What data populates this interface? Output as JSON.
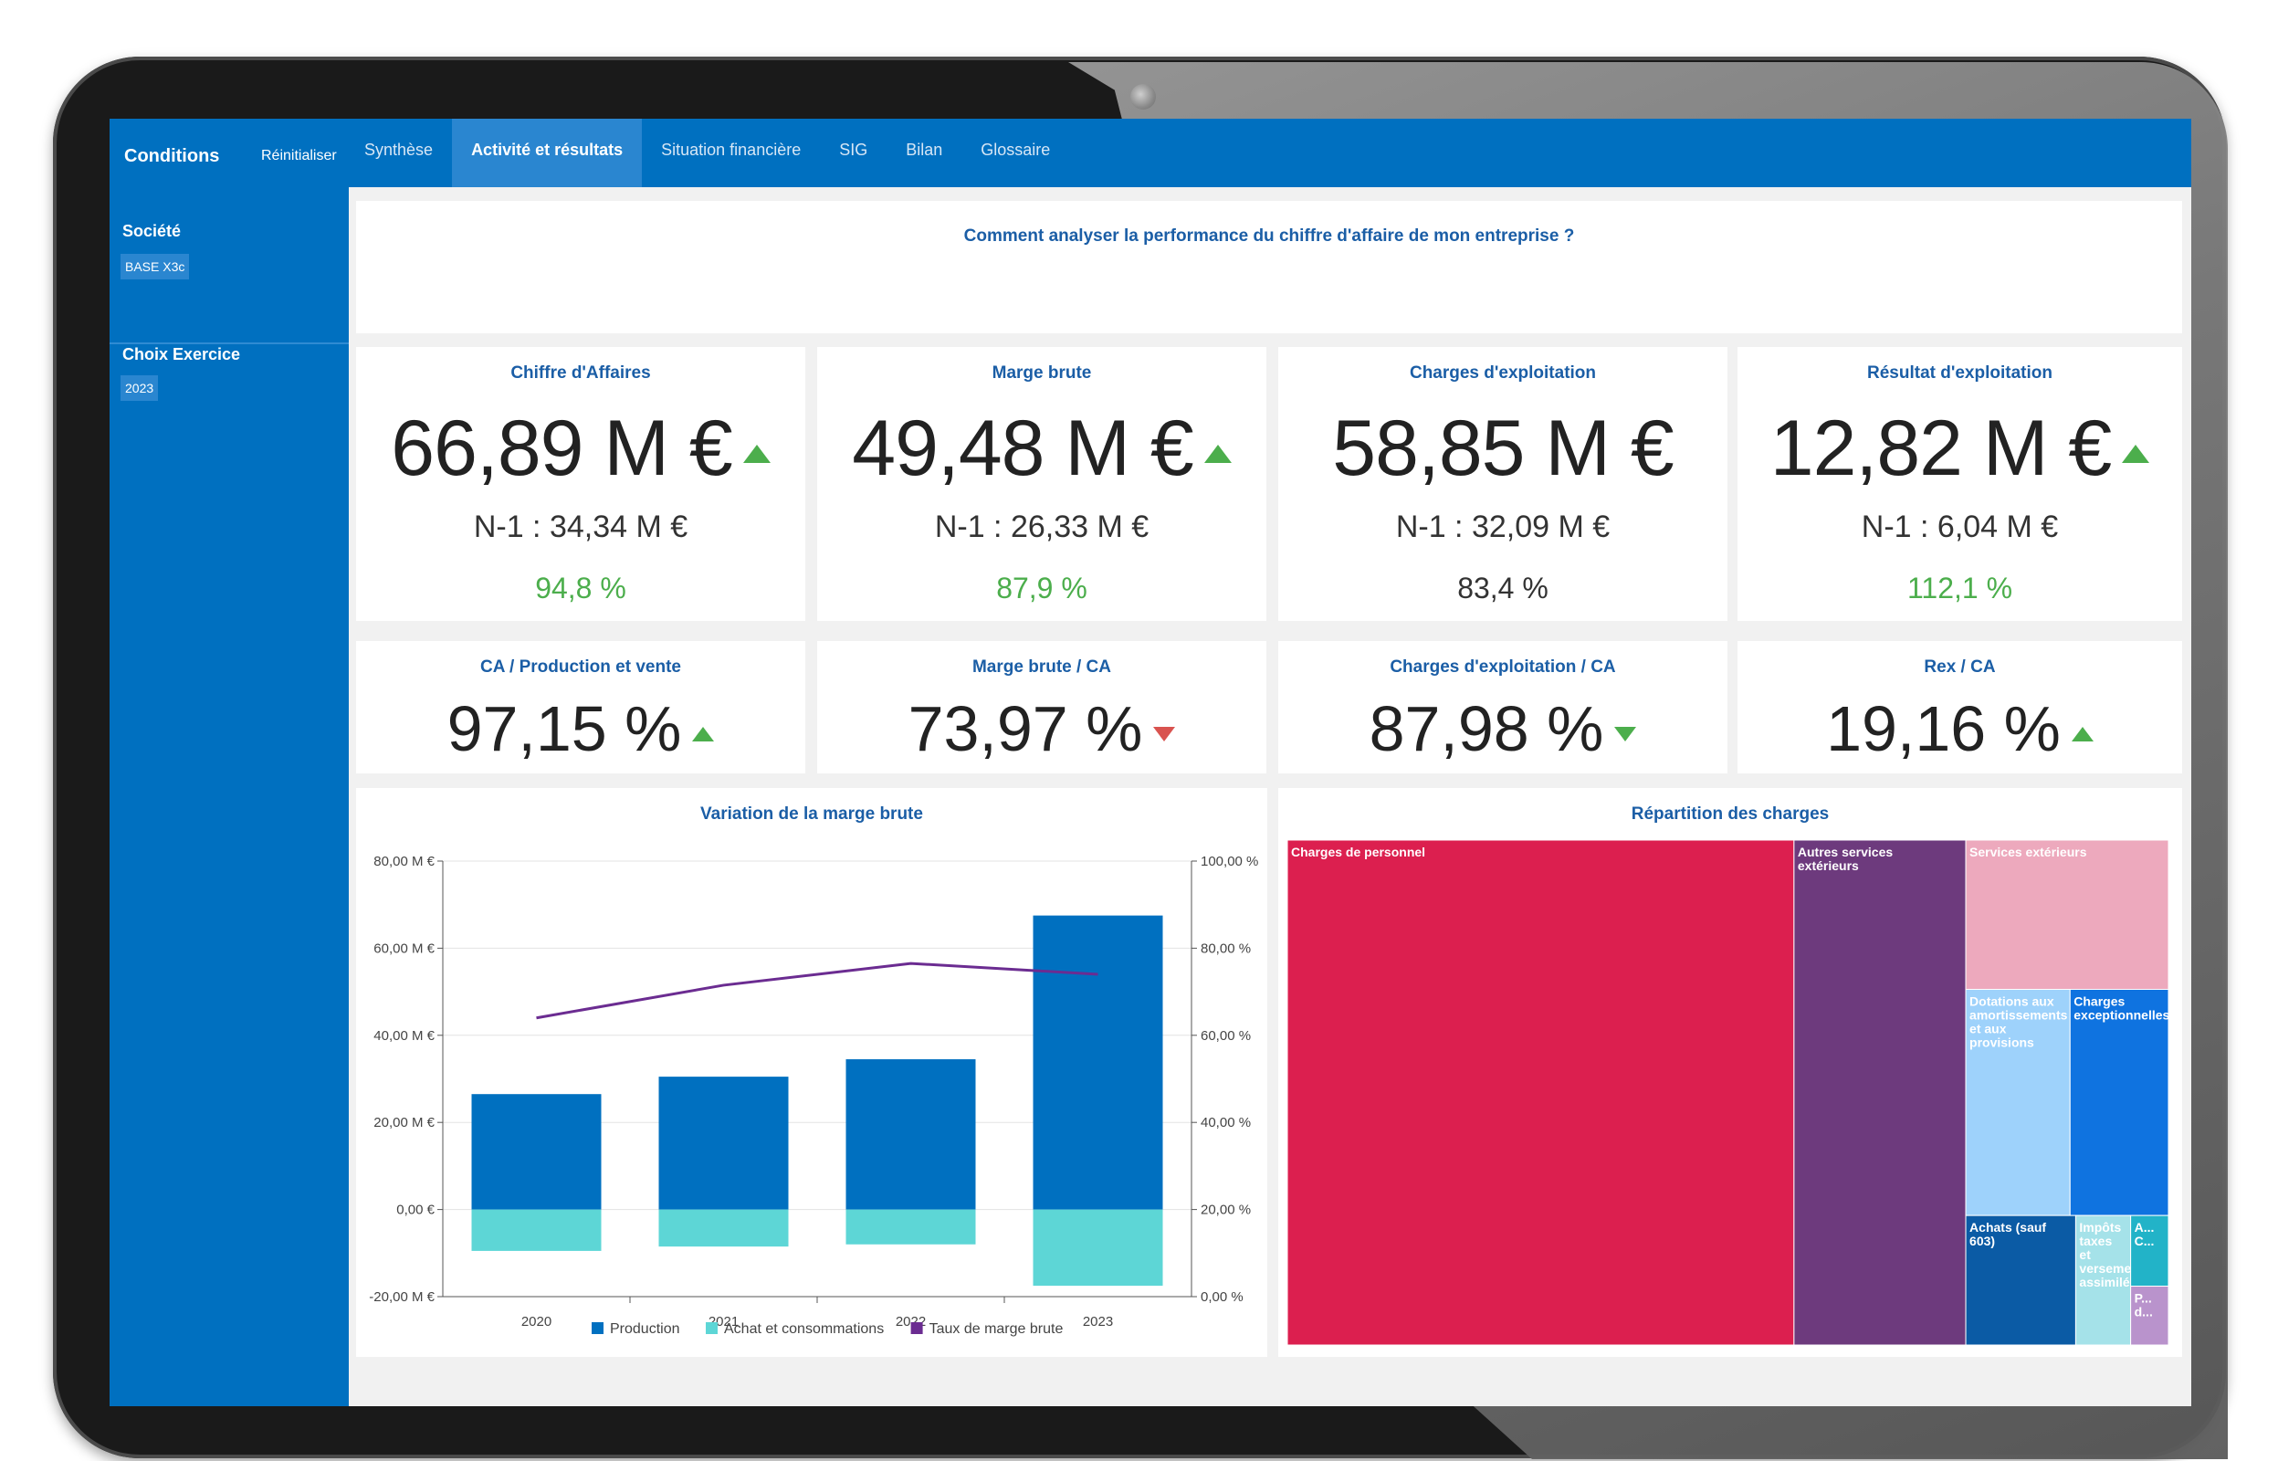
{
  "topbar": {
    "conditions_label": "Conditions",
    "reset_label": "Réinitialiser",
    "tabs": [
      {
        "label": "Synthèse",
        "active": false
      },
      {
        "label": "Activité et résultats",
        "active": true
      },
      {
        "label": "Situation financière",
        "active": false
      },
      {
        "label": "SIG",
        "active": false
      },
      {
        "label": "Bilan",
        "active": false
      },
      {
        "label": "Glossaire",
        "active": false
      }
    ]
  },
  "sidebar": {
    "societe_label": "Société",
    "societe_value": "BASE X3c",
    "exercice_label": "Choix Exercice",
    "exercice_value": "2023"
  },
  "question": "Comment analyser la performance du chiffre d'affaire de mon entreprise ?",
  "kpis": [
    {
      "title": "Chiffre d'Affaires",
      "value": "66,89 M €",
      "trend": "up",
      "previous": "N-1 : 34,34 M €",
      "change": "94,8 %",
      "change_color": "green"
    },
    {
      "title": "Marge brute",
      "value": "49,48 M €",
      "trend": "up",
      "previous": "N-1 : 26,33 M €",
      "change": "87,9 %",
      "change_color": "green"
    },
    {
      "title": "Charges d'exploitation",
      "value": "58,85 M €",
      "trend": "none",
      "previous": "N-1 : 32,09 M €",
      "change": "83,4 %",
      "change_color": "black"
    },
    {
      "title": "Résultat d'exploitation",
      "value": "12,82 M €",
      "trend": "up",
      "previous": "N-1 : 6,04 M €",
      "change": "112,1 %",
      "change_color": "green"
    }
  ],
  "ratios": [
    {
      "title": "CA / Production et vente",
      "value": "97,15 %",
      "trend": "up",
      "color": "green"
    },
    {
      "title": "Marge brute / CA",
      "value": "73,97 %",
      "trend": "down",
      "color": "red"
    },
    {
      "title": "Charges d'exploitation / CA",
      "value": "87,98 %",
      "trend": "down",
      "color": "green"
    },
    {
      "title": "Rex / CA",
      "value": "19,16 %",
      "trend": "up",
      "color": "green"
    }
  ],
  "colors": {
    "brand": "#0070c0",
    "production": "#0070c0",
    "achats": "#5dd6d6",
    "taux": "#6b2c91",
    "trend_up": "#4cae4c",
    "trend_down_bad": "#d9534f"
  },
  "chart_data": [
    {
      "type": "bar",
      "title": "Variation de la marge brute",
      "categories": [
        "2020",
        "2021",
        "2022",
        "2023"
      ],
      "series": [
        {
          "name": "Production",
          "kind": "bar",
          "values": [
            26.5,
            30.5,
            34.5,
            67.5
          ],
          "color": "#0070c0"
        },
        {
          "name": "Achat et consommations",
          "kind": "bar",
          "values": [
            -9.5,
            -8.5,
            -8.0,
            -17.5
          ],
          "color": "#5dd6d6"
        },
        {
          "name": "Taux de marge brute",
          "kind": "line",
          "axis": "right",
          "values": [
            64.0,
            71.5,
            76.5,
            74.0
          ],
          "color": "#6b2c91"
        }
      ],
      "y_ticks": [
        "80,00 M €",
        "60,00 M €",
        "40,00 M €",
        "20,00 M €",
        "0,00 €",
        "-20,00 M €"
      ],
      "y2_ticks": [
        "100,00 %",
        "80,00 %",
        "60,00 %",
        "40,00 %",
        "20,00 %",
        "0,00 %"
      ],
      "ylim": [
        -20,
        80
      ],
      "y2lim": [
        0,
        100
      ],
      "legend": "bottom"
    },
    {
      "type": "treemap",
      "title": "Répartition des charges",
      "items": [
        {
          "label": "Charges de personnel",
          "share": 57.5,
          "color": "#dc1f4f"
        },
        {
          "label": "Autres services extérieurs",
          "share": 19.5,
          "color": "#6d3a7d"
        },
        {
          "label": "Services extérieurs",
          "share": 6.8,
          "color": "#eda9bd"
        },
        {
          "label": "Dotations aux amortissements et aux provisions",
          "share": 5.3,
          "color": "#9ed2fb"
        },
        {
          "label": "Charges exceptionnelles",
          "share": 5.0,
          "color": "#0f73e0"
        },
        {
          "label": "Achats (sauf 603)",
          "share": 3.2,
          "color": "#0b5ba5"
        },
        {
          "label": "Impôts taxes et versements assimilés",
          "share": 1.6,
          "color": "#a5e2e9"
        },
        {
          "label": "A... C...",
          "share": 0.6,
          "color": "#22b3c8"
        },
        {
          "label": "P... d...",
          "share": 0.5,
          "color": "#b993cc"
        }
      ]
    }
  ]
}
